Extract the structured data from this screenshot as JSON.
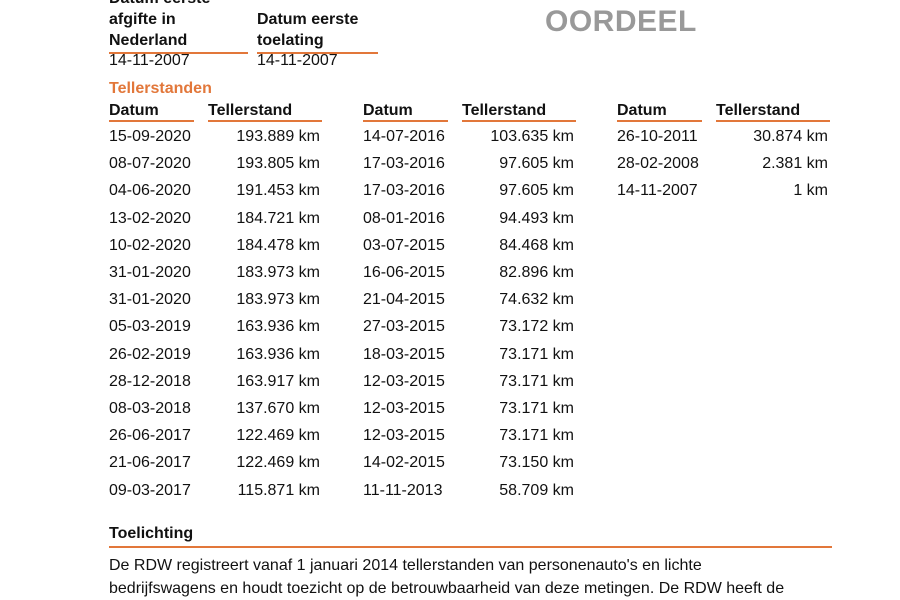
{
  "header": {
    "afgifte_label_lines": [
      "Datum eerste",
      "afgifte in",
      "Nederland"
    ],
    "afgifte_value": "14-11-2007",
    "toelating_label_lines": [
      "Datum eerste",
      "toelating"
    ],
    "toelating_value": "14-11-2007",
    "oordeel": "OORDEEL"
  },
  "tellerstanden": {
    "title": "Tellerstanden",
    "col_date": "Datum",
    "col_value": "Tellerstand",
    "columns": [
      [
        {
          "date": "15-09-2020",
          "km": "193.889 km"
        },
        {
          "date": "08-07-2020",
          "km": "193.805 km"
        },
        {
          "date": "04-06-2020",
          "km": "191.453 km"
        },
        {
          "date": "13-02-2020",
          "km": "184.721 km"
        },
        {
          "date": "10-02-2020",
          "km": "184.478 km"
        },
        {
          "date": "31-01-2020",
          "km": "183.973 km"
        },
        {
          "date": "31-01-2020",
          "km": "183.973 km"
        },
        {
          "date": "05-03-2019",
          "km": "163.936 km"
        },
        {
          "date": "26-02-2019",
          "km": "163.936 km"
        },
        {
          "date": "28-12-2018",
          "km": "163.917 km"
        },
        {
          "date": "08-03-2018",
          "km": "137.670 km"
        },
        {
          "date": "26-06-2017",
          "km": "122.469 km"
        },
        {
          "date": "21-06-2017",
          "km": "122.469 km"
        },
        {
          "date": "09-03-2017",
          "km": "115.871 km"
        }
      ],
      [
        {
          "date": "14-07-2016",
          "km": "103.635 km"
        },
        {
          "date": "17-03-2016",
          "km": "97.605 km"
        },
        {
          "date": "17-03-2016",
          "km": "97.605 km"
        },
        {
          "date": "08-01-2016",
          "km": "94.493 km"
        },
        {
          "date": "03-07-2015",
          "km": "84.468 km"
        },
        {
          "date": "16-06-2015",
          "km": "82.896 km"
        },
        {
          "date": "21-04-2015",
          "km": "74.632 km"
        },
        {
          "date": "27-03-2015",
          "km": "73.172 km"
        },
        {
          "date": "18-03-2015",
          "km": "73.171 km"
        },
        {
          "date": "12-03-2015",
          "km": "73.171 km"
        },
        {
          "date": "12-03-2015",
          "km": "73.171 km"
        },
        {
          "date": "12-03-2015",
          "km": "73.171 km"
        },
        {
          "date": "14-02-2015",
          "km": "73.150 km"
        },
        {
          "date": "11-11-2013",
          "km": "58.709 km"
        }
      ],
      [
        {
          "date": "26-10-2011",
          "km": "30.874 km"
        },
        {
          "date": "28-02-2008",
          "km": "2.381 km"
        },
        {
          "date": "14-11-2007",
          "km": "1 km"
        }
      ]
    ]
  },
  "toelichting": {
    "title": "Toelichting",
    "lines": [
      "De RDW registreert vanaf 1 januari 2014 tellerstanden van personenauto's en lichte",
      "bedrijfswagens en houdt toezicht op de betrouwbaarheid van deze metingen. De RDW heeft de"
    ]
  },
  "colors": {
    "accent": "#e2773a",
    "muted": "#999999"
  }
}
